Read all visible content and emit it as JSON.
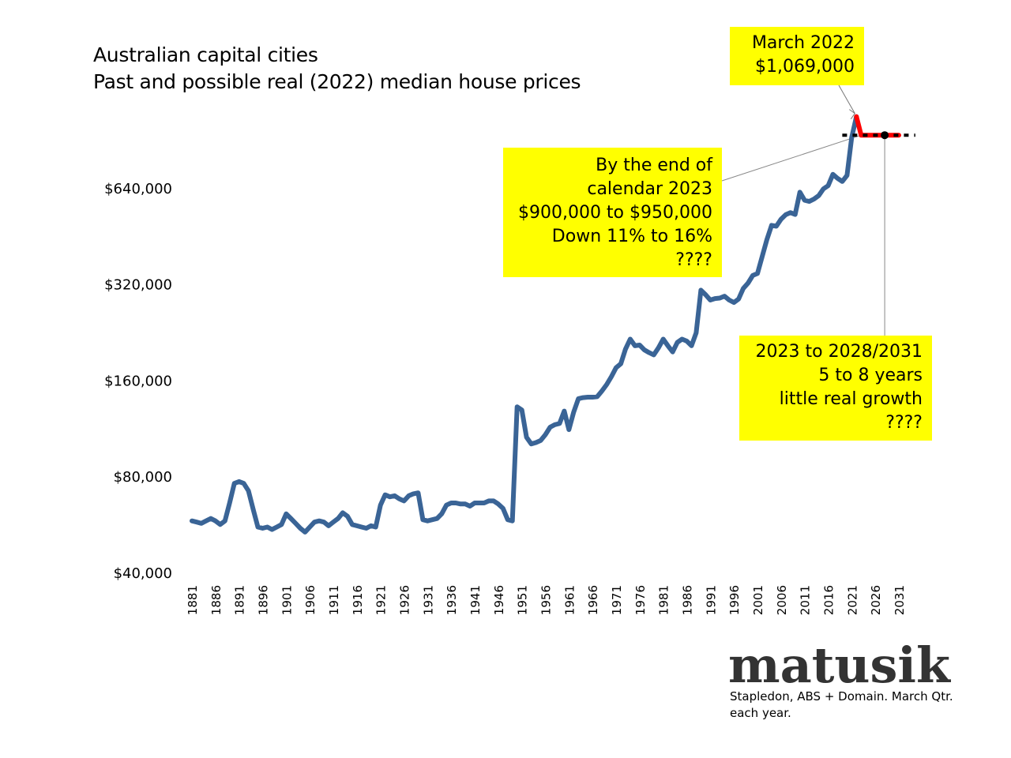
{
  "title": {
    "line1": "Australian capital cities",
    "line2": "Past and possible real (2022) median house prices"
  },
  "callouts": {
    "march2022": [
      "March 2022",
      "$1,069,000"
    ],
    "end2023": [
      "By the end of",
      "calendar 2023",
      "$900,000 to $950,000",
      "Down 11% to 16%",
      "????"
    ],
    "growth": [
      "2023 to 2028/2031",
      "5 to 8 years",
      "little real growth",
      "????"
    ]
  },
  "brand": "matusik",
  "source": "Stapledon, ABS + Domain.  March Qtr. each year.",
  "colors": {
    "history": "#3a6496",
    "forecast": "#ff0000",
    "callout_bg": "#ffff00",
    "guide": "#000000"
  },
  "chart_data": {
    "type": "line",
    "title": "Australian capital cities\nPast and possible real (2022) median house prices",
    "y_scale": "log",
    "ylim": [
      40000,
      1280000
    ],
    "y_ticks": [
      40000,
      80000,
      160000,
      320000,
      640000
    ],
    "y_tick_labels": [
      "$40,000",
      "$80,000",
      "$160,000",
      "$320,000",
      "$640,000"
    ],
    "x_tick_labels": [
      "1881",
      "1886",
      "1891",
      "1896",
      "1901",
      "1906",
      "1911",
      "1916",
      "1921",
      "1926",
      "1931",
      "1936",
      "1941",
      "1946",
      "1951",
      "1956",
      "1961",
      "1966",
      "1971",
      "1976",
      "1981",
      "1986",
      "1991",
      "1996",
      "2001",
      "2006",
      "2011",
      "2016",
      "2021",
      "2026",
      "2031"
    ],
    "xlim": [
      1881,
      2031
    ],
    "grid": false,
    "legend": "none",
    "series": [
      {
        "x": [
          1881,
          1882,
          1883,
          1884,
          1885,
          1886,
          1887,
          1888,
          1889,
          1890,
          1891,
          1892,
          1893,
          1894,
          1895,
          1896,
          1897,
          1898,
          1899,
          1900,
          1901,
          1902,
          1903,
          1904,
          1905,
          1906,
          1907,
          1908,
          1909,
          1910,
          1911,
          1912,
          1913,
          1914,
          1915,
          1916,
          1917,
          1918,
          1919,
          1920,
          1921,
          1922,
          1923,
          1924,
          1925,
          1926,
          1927,
          1928,
          1929,
          1930,
          1931,
          1932,
          1933,
          1934,
          1935,
          1936,
          1937,
          1938,
          1939,
          1940,
          1941,
          1942,
          1943,
          1944,
          1945,
          1946,
          1947,
          1948,
          1949,
          1950,
          1951,
          1952,
          1953,
          1954,
          1955,
          1956,
          1957,
          1958,
          1959,
          1960,
          1961,
          1962,
          1963,
          1964,
          1965,
          1966,
          1967,
          1968,
          1969,
          1970,
          1971,
          1972,
          1973,
          1974,
          1975,
          1976,
          1977,
          1978,
          1979,
          1980,
          1981,
          1982,
          1983,
          1984,
          1985,
          1986,
          1987,
          1988,
          1989,
          1990,
          1991,
          1992,
          1993,
          1994,
          1995,
          1996,
          1997,
          1998,
          1999,
          2000,
          2001,
          2002,
          2003,
          2004,
          2005,
          2006,
          2007,
          2008,
          2009,
          2010,
          2011,
          2012,
          2013,
          2014,
          2015,
          2016,
          2017,
          2018,
          2019,
          2020,
          2021,
          2022
        ],
        "values": [
          58000,
          57500,
          57000,
          58000,
          59000,
          58000,
          56500,
          58000,
          66000,
          76000,
          77000,
          76000,
          72000,
          63000,
          55500,
          55000,
          55500,
          54500,
          55500,
          56500,
          61000,
          59000,
          57000,
          55000,
          53500,
          55500,
          57500,
          58000,
          57500,
          56000,
          57500,
          59000,
          61500,
          60000,
          56500,
          56000,
          55500,
          55000,
          56000,
          55500,
          65000,
          70000,
          69000,
          69500,
          68000,
          67000,
          69500,
          70500,
          71000,
          58500,
          58000,
          58500,
          59000,
          61000,
          65000,
          66000,
          66000,
          65500,
          65500,
          64500,
          66000,
          66000,
          66000,
          67000,
          67000,
          65500,
          63500,
          58500,
          58000,
          132000,
          129000,
          106000,
          101000,
          102000,
          103500,
          108000,
          114000,
          116000,
          117000,
          128000,
          112000,
          127000,
          140000,
          141000,
          141500,
          141500,
          142000,
          148000,
          155000,
          164000,
          175000,
          180000,
          200000,
          215000,
          205000,
          206000,
          199000,
          195000,
          192000,
          202000,
          215000,
          205000,
          196000,
          210000,
          215000,
          212000,
          205000,
          225000,
          306000,
          296000,
          285000,
          288000,
          289000,
          293000,
          285000,
          280000,
          287000,
          310000,
          322000,
          340000,
          345000,
          390000,
          440000,
          488000,
          485000,
          510000,
          527000,
          535000,
          528000,
          620000,
          585000,
          580000,
          590000,
          605000,
          635000,
          650000,
          705000,
          685000,
          670000,
          700000,
          920000,
          1069000
        ]
      },
      {
        "x": [
          2022,
          2023,
          2031
        ],
        "values": [
          1069000,
          935000,
          935000
        ]
      }
    ]
  }
}
